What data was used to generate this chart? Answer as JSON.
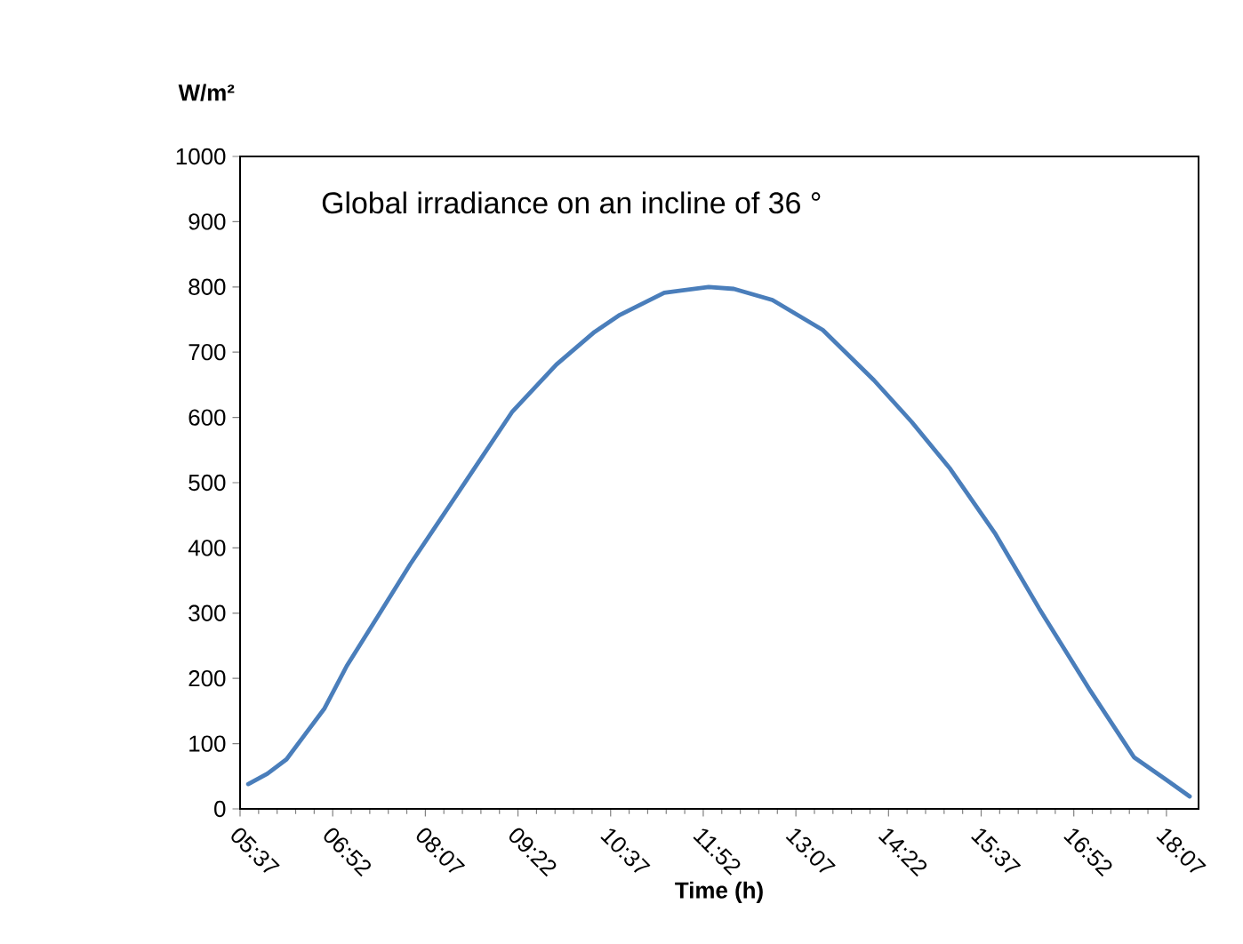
{
  "chart_data": {
    "type": "line",
    "title": "Global irradiance on an  incline of 36 °",
    "xlabel": "Time (h)",
    "ylabel": "W/m²",
    "x": [
      5.727,
      5.986,
      6.243,
      6.499,
      6.756,
      7.056,
      7.486,
      7.913,
      8.256,
      8.685,
      9.285,
      9.885,
      10.4,
      10.74,
      11.34,
      11.94,
      12.28,
      12.8,
      13.48,
      14.17,
      14.68,
      15.2,
      15.8,
      16.4,
      17.09,
      17.68,
      18.11,
      18.43
    ],
    "series": [
      {
        "color": "#4a7ebb",
        "values": [
          38,
          54,
          76,
          115,
          154,
          219,
          297,
          375,
          433,
          506,
          608,
          681,
          731,
          757,
          791,
          800,
          797,
          780,
          734,
          657,
          593,
          521,
          423,
          307,
          181,
          79,
          45,
          19
        ]
      }
    ],
    "xlim": [
      5.6167,
      18.55
    ],
    "xticks": [
      {
        "value": 5.6167,
        "label": "05:37"
      },
      {
        "value": 6.8667,
        "label": "06:52"
      },
      {
        "value": 8.1167,
        "label": "08:07"
      },
      {
        "value": 9.3667,
        "label": "09:22"
      },
      {
        "value": 10.6167,
        "label": "10:37"
      },
      {
        "value": 11.8667,
        "label": "11:52"
      },
      {
        "value": 13.1167,
        "label": "13:07"
      },
      {
        "value": 14.3667,
        "label": "14:22"
      },
      {
        "value": 15.6167,
        "label": "15:37"
      },
      {
        "value": 16.8667,
        "label": "16:52"
      },
      {
        "value": 18.1167,
        "label": "18:07"
      }
    ],
    "ylim": [
      0,
      1000
    ],
    "yticks": [
      0,
      100,
      200,
      300,
      400,
      500,
      600,
      700,
      800,
      900,
      1000
    ],
    "marker": "none",
    "line_style": "solid"
  }
}
